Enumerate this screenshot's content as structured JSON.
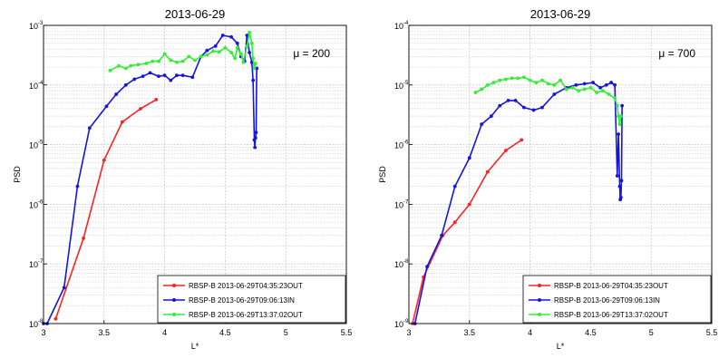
{
  "colors": {
    "red": "#ff2020",
    "blue": "#1515e0",
    "green": "#33ee33",
    "grid": "#c9c9c9",
    "frame": "#000000"
  },
  "chart_data": [
    {
      "type": "line",
      "title": "2013-06-29",
      "xlabel": "L*",
      "ylabel": "PSD",
      "annotation": "μ = 200",
      "yscale": "log",
      "xlim": [
        3,
        5.5
      ],
      "ylim": [
        1e-08,
        0.001
      ],
      "xticks": [
        "3",
        "3.5",
        "4",
        "4.5",
        "5",
        "5.5"
      ],
      "ytick_exponents": [
        "-8",
        "-7",
        "-6",
        "-5",
        "-4",
        "-3"
      ],
      "grid": true,
      "legend_position": "bottom-right",
      "series": [
        {
          "name": "RBSP-B 2013-06-29T04:35:23OUT",
          "color": "red",
          "x": [
            3.1,
            3.33,
            3.5,
            3.65,
            3.8,
            3.93
          ],
          "y": [
            1.2e-08,
            2.7e-07,
            5.5e-06,
            2.4e-05,
            4e-05,
            5.7e-05
          ]
        },
        {
          "name": "RBSP-B 2013-06-29T09:06:13IN",
          "color": "blue",
          "x": [
            3.0,
            3.03,
            3.17,
            3.28,
            3.38,
            3.52,
            3.6,
            3.68,
            3.75,
            3.82,
            3.88,
            3.95,
            4.0,
            4.05,
            4.1,
            4.15,
            4.23,
            4.3,
            4.35,
            4.42,
            4.48,
            4.55,
            4.6,
            4.63,
            4.66,
            4.68,
            4.7,
            4.72,
            4.73,
            4.74,
            4.745,
            4.75,
            4.755,
            4.76
          ],
          "y": [
            1e-08,
            1e-08,
            4e-08,
            2e-06,
            1.9e-05,
            4.4e-05,
            7e-05,
            0.0001,
            0.000125,
            0.00014,
            0.00016,
            0.00014,
            0.000145,
            0.00012,
            0.000145,
            0.000145,
            0.000135,
            0.0003,
            0.00038,
            0.00045,
            0.00068,
            0.00064,
            0.0005,
            0.0003,
            0.00025,
            0.00068,
            0.00035,
            0.00024,
            0.00012,
            1.2e-05,
            9e-06,
            1.3e-05,
            1.6e-05,
            0.00019
          ]
        },
        {
          "name": "RBSP-B 2013-06-29T13:37:02OUT",
          "color": "green",
          "x": [
            3.55,
            3.62,
            3.68,
            3.72,
            3.78,
            3.85,
            3.9,
            3.95,
            4.0,
            4.05,
            4.1,
            4.15,
            4.2,
            4.25,
            4.3,
            4.35,
            4.4,
            4.45,
            4.5,
            4.55,
            4.58,
            4.6,
            4.63,
            4.65,
            4.68,
            4.7,
            4.72,
            4.73,
            4.74,
            4.75
          ],
          "y": [
            0.000175,
            0.00021,
            0.00019,
            0.00021,
            0.00022,
            0.00023,
            0.00025,
            0.00025,
            0.00033,
            0.00026,
            0.00024,
            0.00025,
            0.0003,
            0.00026,
            0.0003,
            0.00032,
            0.00037,
            0.00036,
            0.00042,
            0.00035,
            0.00028,
            0.00042,
            0.00033,
            0.00024,
            0.00045,
            0.00076,
            0.0005,
            0.00028,
            0.00019,
            0.00023
          ]
        }
      ]
    },
    {
      "type": "line",
      "title": "2013-06-29",
      "xlabel": "L*",
      "ylabel": "PSD",
      "annotation": "μ = 700",
      "yscale": "log",
      "xlim": [
        3,
        5.5
      ],
      "ylim": [
        1e-09,
        0.0001
      ],
      "xticks": [
        "3",
        "3.5",
        "4",
        "4.5",
        "5",
        "5.5"
      ],
      "ytick_exponents": [
        "-9",
        "-8",
        "-7",
        "-6",
        "-5",
        "-4"
      ],
      "grid": true,
      "legend_position": "bottom-right",
      "series": [
        {
          "name": "RBSP-B 2013-06-29T04:35:23OUT",
          "color": "red",
          "x": [
            3.03,
            3.12,
            3.28,
            3.38,
            3.5,
            3.65,
            3.8,
            3.93
          ],
          "y": [
            1e-09,
            6e-09,
            3e-08,
            5e-08,
            1e-07,
            3.5e-07,
            8e-07,
            1.2e-06
          ]
        },
        {
          "name": "RBSP-B 2013-06-29T09:06:13IN",
          "color": "blue",
          "x": [
            3.05,
            3.15,
            3.27,
            3.38,
            3.5,
            3.6,
            3.68,
            3.75,
            3.82,
            3.88,
            3.95,
            4.03,
            4.1,
            4.2,
            4.3,
            4.38,
            4.45,
            4.52,
            4.58,
            4.63,
            4.67,
            4.7,
            4.72,
            4.73,
            4.74,
            4.745,
            4.75,
            4.755,
            4.76
          ],
          "y": [
            1e-09,
            9e-09,
            3e-08,
            2e-07,
            6e-07,
            2.2e-06,
            3e-06,
            4.5e-06,
            5.5e-06,
            5.5e-06,
            4.2e-06,
            3.8e-06,
            4.2e-06,
            7e-06,
            9e-06,
            1e-05,
            1.05e-05,
            1.1e-05,
            9e-06,
            1e-05,
            1.1e-05,
            1e-05,
            3e-07,
            1.5e-06,
            2e-07,
            1.2e-07,
            1.3e-07,
            2.5e-07,
            4.5e-06
          ]
        },
        {
          "name": "RBSP-B 2013-06-29T13:37:02OUT",
          "color": "green",
          "x": [
            3.55,
            3.6,
            3.65,
            3.7,
            3.75,
            3.8,
            3.85,
            3.9,
            3.95,
            4.0,
            4.05,
            4.1,
            4.15,
            4.2,
            4.25,
            4.3,
            4.35,
            4.4,
            4.45,
            4.5,
            4.55,
            4.6,
            4.65,
            4.7,
            4.72,
            4.73,
            4.74,
            4.75
          ],
          "y": [
            7.5e-06,
            8.5e-06,
            1e-05,
            1.1e-05,
            1.2e-05,
            1.25e-05,
            1.3e-05,
            1.3e-05,
            1.35e-05,
            1.2e-05,
            1.1e-05,
            1.2e-05,
            1.05e-05,
            1e-05,
            1.2e-05,
            8.5e-06,
            9e-06,
            8e-06,
            8.5e-06,
            9e-06,
            7.5e-06,
            8e-06,
            7e-06,
            6e-06,
            4.5e-06,
            3e-06,
            2.2e-06,
            3e-06
          ]
        }
      ]
    }
  ]
}
